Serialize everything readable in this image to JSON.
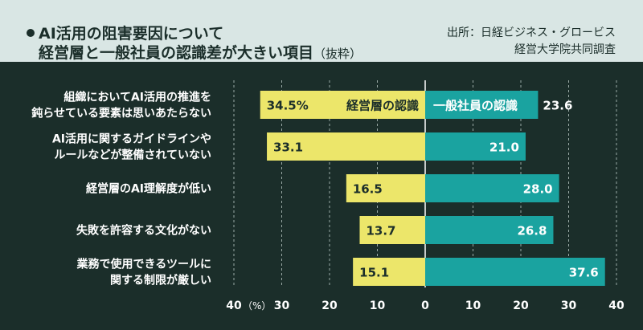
{
  "header": {
    "title_line1": "AI活用の阻害要因について",
    "title_line2": "経営層と一般社員の認識差が大きい項目",
    "title_note": "（抜粋）",
    "source_line1": "出所：日経ビジネス・グロービス",
    "source_line2": "経営大学院共同調査"
  },
  "colors": {
    "background": "#1b2e2a",
    "header_bg": "#d9e6e4",
    "management": "#ece66a",
    "employee": "#1aa3a0",
    "text_light": "#ffffff",
    "text_dark": "#1b2e2a"
  },
  "chart_data": {
    "type": "bar",
    "orientation": "horizontal-diverging",
    "categories": [
      [
        "組織においてAI活用の推進を",
        "鈍らせている要素は思いあたらない"
      ],
      [
        "AI活用に関するガイドラインや",
        "ルールなどが整備されていない"
      ],
      [
        "経営層のAI理解度が低い"
      ],
      [
        "失敗を許容する文化がない"
      ],
      [
        "業務で使用できるツールに",
        "関する制限が厳しい"
      ]
    ],
    "series": [
      {
        "name": "経営層の認識",
        "side": "left",
        "values": [
          34.5,
          33.1,
          16.5,
          13.7,
          15.1
        ],
        "labels": [
          "34.5%",
          "33.1",
          "16.5",
          "13.7",
          "15.1"
        ]
      },
      {
        "name": "一般社員の認識",
        "side": "right",
        "values": [
          23.6,
          21.0,
          28.0,
          26.8,
          37.6
        ],
        "labels": [
          "23.6",
          "21.0",
          "28.0",
          "26.8",
          "37.6"
        ]
      }
    ],
    "xlim": [
      -40,
      40
    ],
    "ticks": [
      {
        "value": -40,
        "label": "40"
      },
      {
        "value": -30,
        "label": "30"
      },
      {
        "value": -20,
        "label": "20"
      },
      {
        "value": -10,
        "label": "10"
      },
      {
        "value": 0,
        "label": "0"
      },
      {
        "value": 10,
        "label": "10"
      },
      {
        "value": 20,
        "label": "20"
      },
      {
        "value": 30,
        "label": "30"
      },
      {
        "value": 40,
        "label": "40"
      }
    ],
    "unit_label": "（%）",
    "grid": "dashed-vertical"
  }
}
